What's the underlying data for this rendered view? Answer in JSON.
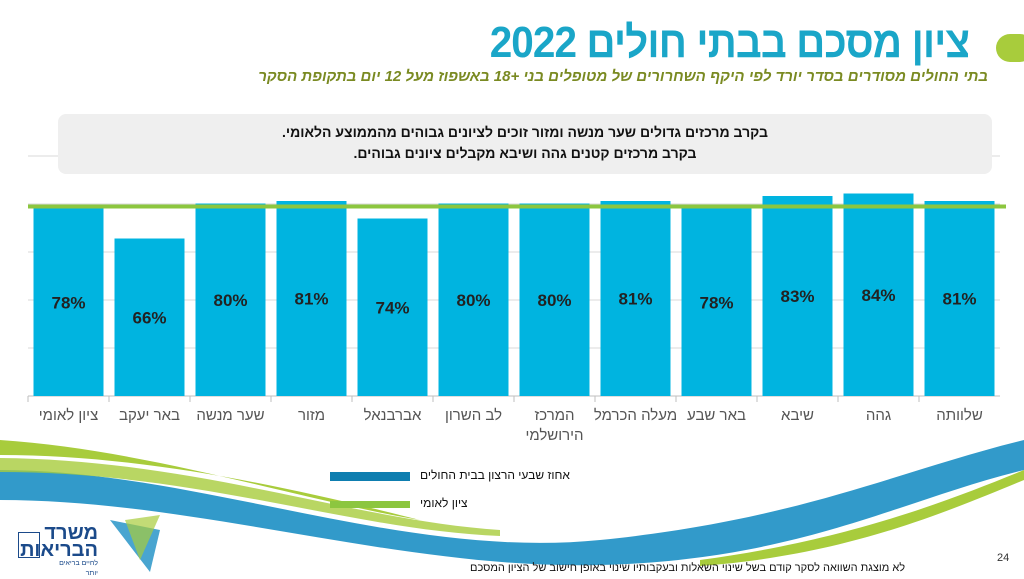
{
  "header": {
    "title": "ציון מסכם בבתי חולים 2022",
    "subtitle": "בתי החולים מסודרים בסדר יורד לפי היקף השחרורים של מטופלים בני +18 באשפוז מעל 12 יום בתקופת הסקר"
  },
  "callout": {
    "line1": "בקרב מרכזים גדולים שער מנשה ומזור זוכים לציונים גבוהים מהממוצע הלאומי.",
    "line2": "בקרב מרכזים קטנים גהה ושיבא מקבלים ציונים גבוהים."
  },
  "chart_data": {
    "type": "bar",
    "categories": [
      "ציון לאומי",
      "באר יעקב",
      "שער מנשה",
      "מזור",
      "אברבנאל",
      "לב השרון",
      "המרכז הירושלמי",
      "מעלה הכרמל",
      "באר שבע",
      "שיבא",
      "גהה",
      "שלוותה"
    ],
    "series": [
      {
        "name": "אחוז שבעי הרצון בבית החולים",
        "values": [
          78,
          66,
          80,
          81,
          74,
          80,
          80,
          81,
          78,
          83,
          84,
          81
        ],
        "color": "#00b4e0"
      }
    ],
    "reference_line": {
      "name": "ציון לאומי",
      "value": 78,
      "color": "#8cc63f"
    },
    "data_labels": [
      "78%",
      "66%",
      "80%",
      "81%",
      "74%",
      "80%",
      "80%",
      "81%",
      "78%",
      "83%",
      "84%",
      "81%"
    ],
    "ylim": [
      3,
      99
    ],
    "grid": true,
    "legend_placement": "bottom"
  },
  "legend": {
    "series_label": "אחוז שבעי הרצון בבית החולים",
    "national_label": "ציון לאומי"
  },
  "footer": {
    "note": "לא מוצגת השוואה לסקר קודם בשל שינוי השאלות ובעקבותיו שינוי באופן חישוב של הציון המסכם",
    "page_number": "24",
    "logo_line1": "משרד",
    "logo_line2": "הבריאות",
    "logo_tagline": "לחיים בריאים יותר"
  }
}
